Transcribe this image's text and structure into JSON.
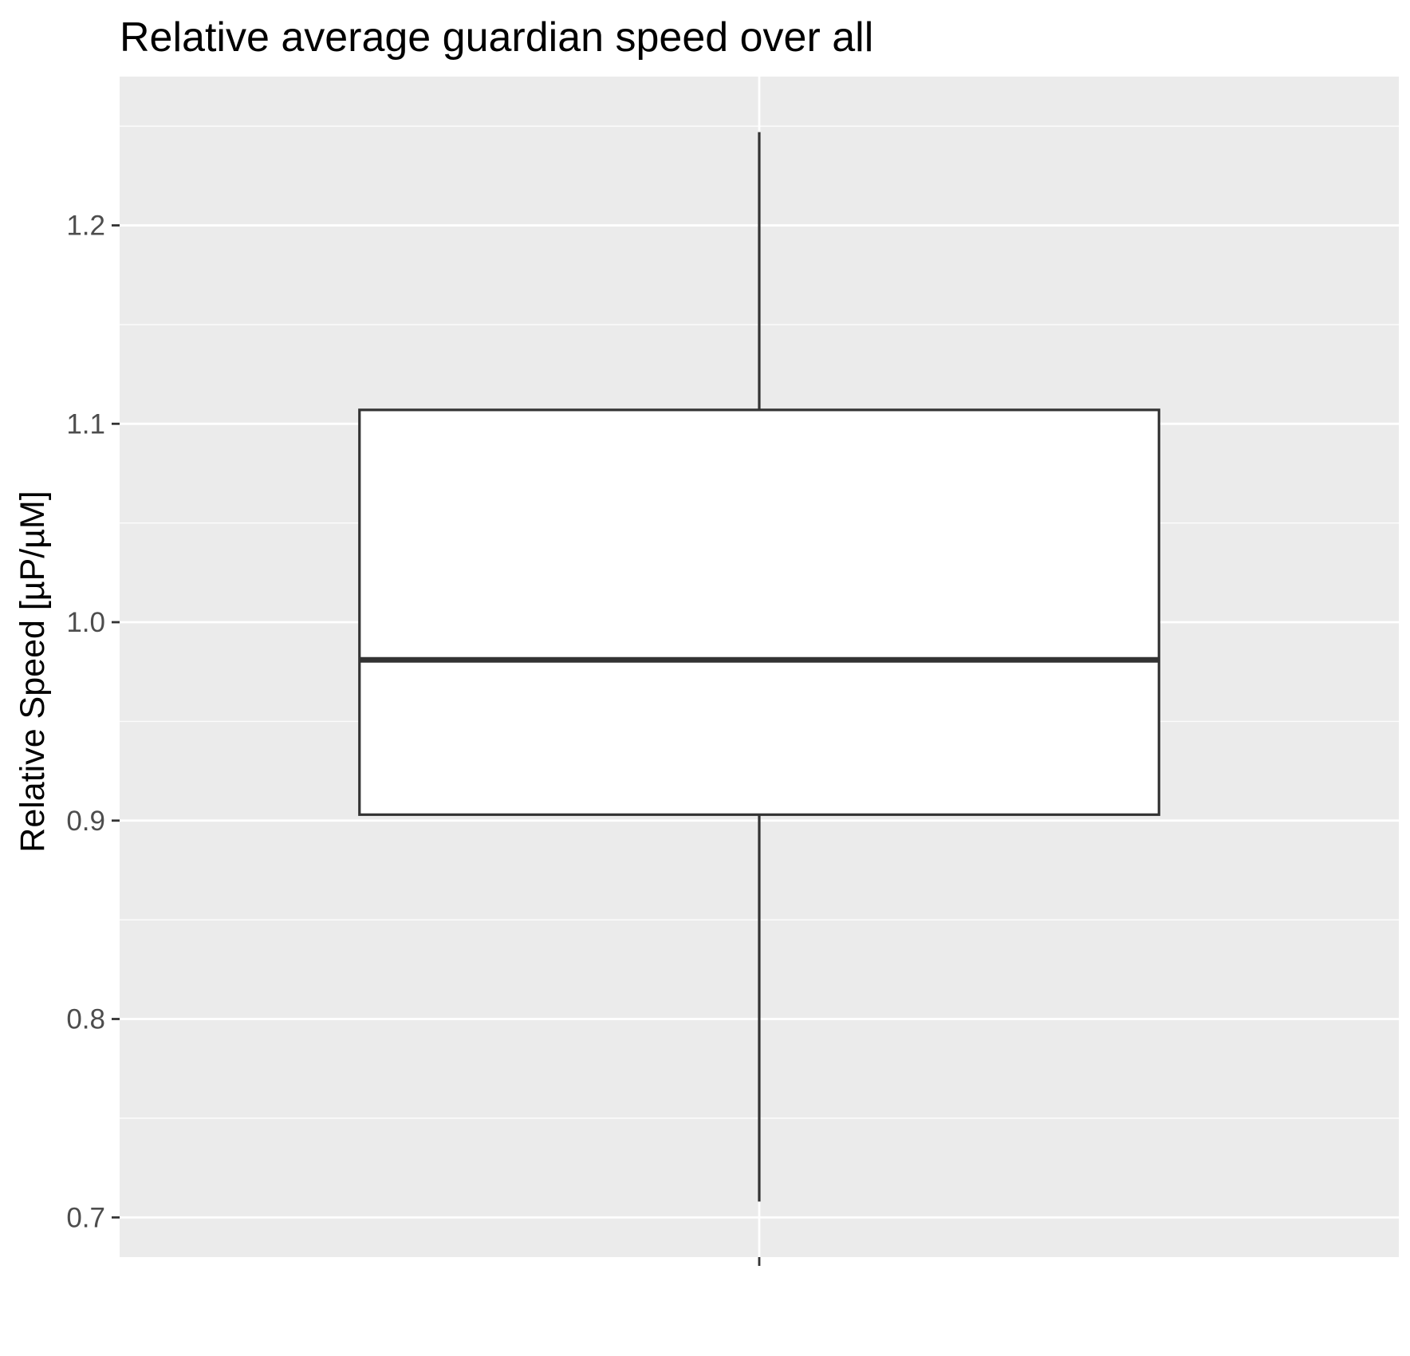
{
  "chart_data": {
    "type": "boxplot",
    "title": "Relative average guardian speed over all",
    "xlabel": "",
    "ylabel": "Relative Speed [µP/µM]",
    "ylim": [
      0.68,
      1.275
    ],
    "yticks": [
      0.7,
      0.8,
      0.9,
      1.0,
      1.1,
      1.2
    ],
    "ytick_labels": [
      "0.7",
      "0.8",
      "0.9",
      "1.0",
      "1.1",
      "1.2"
    ],
    "categories": [
      ""
    ],
    "boxes": [
      {
        "name": "",
        "whisker_low": 0.708,
        "q1": 0.903,
        "median": 0.981,
        "q3": 1.107,
        "whisker_high": 1.247
      }
    ],
    "grid": true,
    "legend": "none",
    "colors": {
      "panel_background": "#EBEBEB",
      "grid_major": "#FFFFFF",
      "grid_minor": "#F7F7F7",
      "box_fill": "#FFFFFF",
      "box_line": "#333333",
      "tick_mark": "#333333",
      "tick_label": "#4D4D4D",
      "text": "#000000"
    }
  }
}
